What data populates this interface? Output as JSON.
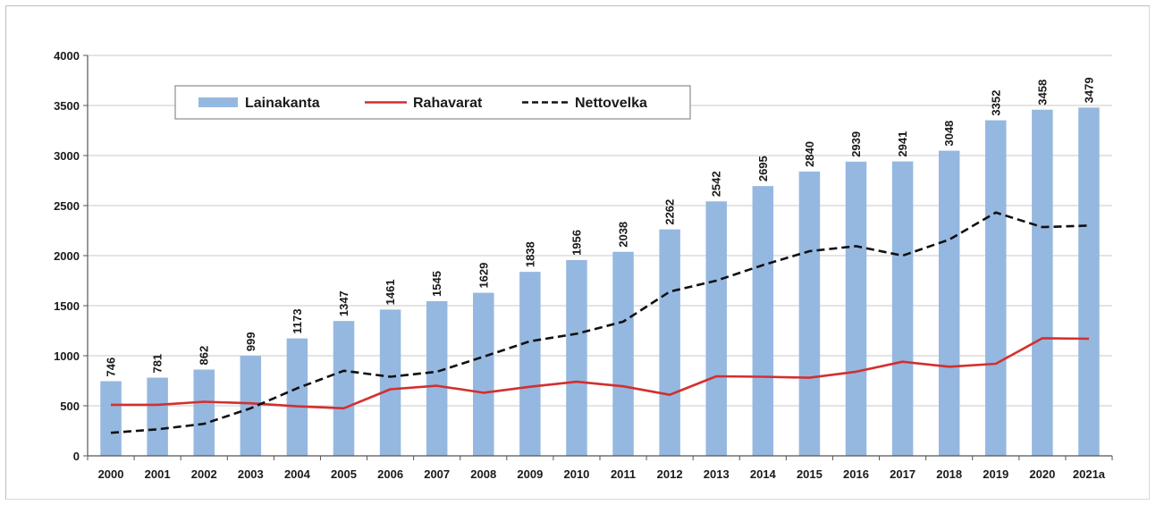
{
  "chart_data": {
    "type": "bar",
    "categories": [
      "2000",
      "2001",
      "2002",
      "2003",
      "2004",
      "2005",
      "2006",
      "2007",
      "2008",
      "2009",
      "2010",
      "2011",
      "2012",
      "2013",
      "2014",
      "2015",
      "2016",
      "2017",
      "2018",
      "2019",
      "2020",
      "2021a"
    ],
    "series": [
      {
        "name": "Lainakanta",
        "type": "bar",
        "color": "#95b8e0",
        "values": [
          746,
          781,
          862,
          999,
          1173,
          1347,
          1461,
          1545,
          1629,
          1838,
          1956,
          2038,
          2262,
          2542,
          2695,
          2840,
          2939,
          2941,
          3048,
          3352,
          3458,
          3479
        ],
        "labels": [
          "746",
          "781",
          "862",
          "999",
          "1173",
          "1347",
          "1461",
          "1545",
          "1629",
          "1838",
          "1956",
          "2038",
          "2262",
          "2542",
          "2695",
          "2840",
          "2939",
          "2941",
          "3048",
          "3352",
          "3458",
          "3479"
        ]
      },
      {
        "name": "Rahavarat",
        "type": "line",
        "color": "#d32f2f",
        "values": [
          510,
          510,
          540,
          525,
          495,
          475,
          665,
          700,
          630,
          690,
          740,
          695,
          610,
          795,
          790,
          780,
          840,
          940,
          890,
          920,
          1175,
          1170
        ]
      },
      {
        "name": "Nettovelka",
        "type": "line",
        "dashed": true,
        "color": "#111111",
        "values": [
          230,
          265,
          320,
          475,
          675,
          850,
          790,
          840,
          990,
          1145,
          1220,
          1340,
          1640,
          1750,
          1905,
          2045,
          2095,
          2000,
          2160,
          2430,
          2285,
          2300
        ]
      }
    ],
    "yticks": [
      "0",
      "500",
      "1000",
      "1500",
      "2000",
      "2500",
      "3000",
      "3500",
      "4000"
    ],
    "ylim": [
      0,
      4000
    ],
    "grid": true,
    "legend_position": "top-left"
  }
}
